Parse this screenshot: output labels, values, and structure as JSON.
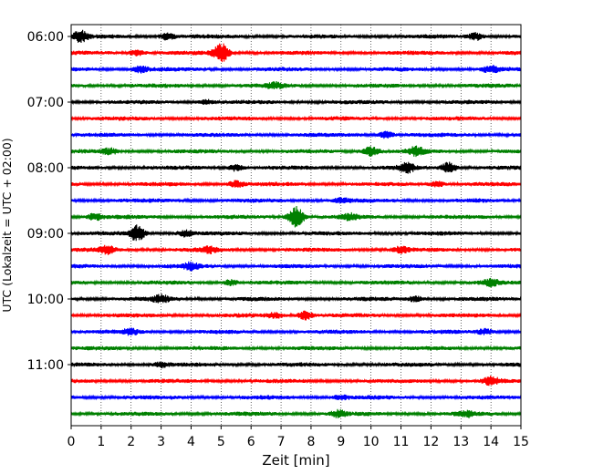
{
  "chart_data": {
    "type": "line",
    "title": "",
    "xlabel": "Zeit  [min]",
    "ylabel": "UTC (Lokalzeit = UTC + 02:00)",
    "xlim": [
      0,
      15
    ],
    "x_ticks": [
      "0",
      "1",
      "2",
      "3",
      "4",
      "5",
      "6",
      "7",
      "8",
      "9",
      "10",
      "11",
      "12",
      "13",
      "14",
      "15"
    ],
    "y_tick_labels": [
      "06:00",
      "07:00",
      "08:00",
      "09:00",
      "10:00",
      "11:00"
    ],
    "grid_x": true,
    "trace_interval_minutes": 15,
    "traces": [
      {
        "start": "06:00",
        "color": "#000000",
        "events": [
          {
            "t": 0.3,
            "amp": 1.0
          },
          {
            "t": 3.2,
            "amp": 0.6
          },
          {
            "t": 13.5,
            "amp": 0.7
          }
        ]
      },
      {
        "start": "06:15",
        "color": "#ff0000",
        "events": [
          {
            "t": 5.0,
            "amp": 1.8
          },
          {
            "t": 2.2,
            "amp": 0.5
          }
        ]
      },
      {
        "start": "06:30",
        "color": "#0000ff",
        "events": [
          {
            "t": 2.3,
            "amp": 0.6
          },
          {
            "t": 14.0,
            "amp": 0.6
          }
        ]
      },
      {
        "start": "06:45",
        "color": "#008000",
        "events": [
          {
            "t": 6.8,
            "amp": 0.5
          }
        ]
      },
      {
        "start": "07:00",
        "color": "#000000",
        "events": [
          {
            "t": 4.5,
            "amp": 0.4
          }
        ]
      },
      {
        "start": "07:15",
        "color": "#ff0000",
        "events": []
      },
      {
        "start": "07:30",
        "color": "#0000ff",
        "events": [
          {
            "t": 10.5,
            "amp": 0.6
          }
        ]
      },
      {
        "start": "07:45",
        "color": "#008000",
        "events": [
          {
            "t": 1.3,
            "amp": 0.5
          },
          {
            "t": 10.0,
            "amp": 0.9
          },
          {
            "t": 11.5,
            "amp": 0.8
          }
        ]
      },
      {
        "start": "08:00",
        "color": "#000000",
        "events": [
          {
            "t": 5.5,
            "amp": 0.6
          },
          {
            "t": 11.2,
            "amp": 0.8
          },
          {
            "t": 12.6,
            "amp": 1.0
          }
        ]
      },
      {
        "start": "08:15",
        "color": "#ff0000",
        "events": [
          {
            "t": 5.5,
            "amp": 0.6
          },
          {
            "t": 12.2,
            "amp": 0.5
          }
        ]
      },
      {
        "start": "08:30",
        "color": "#0000ff",
        "events": [
          {
            "t": 9.0,
            "amp": 0.4
          }
        ]
      },
      {
        "start": "08:45",
        "color": "#008000",
        "events": [
          {
            "t": 7.5,
            "amp": 2.0
          },
          {
            "t": 0.8,
            "amp": 0.6
          },
          {
            "t": 9.3,
            "amp": 0.5
          }
        ]
      },
      {
        "start": "09:00",
        "color": "#000000",
        "events": [
          {
            "t": 2.2,
            "amp": 1.5
          },
          {
            "t": 3.8,
            "amp": 0.6
          }
        ]
      },
      {
        "start": "09:15",
        "color": "#ff0000",
        "events": [
          {
            "t": 1.2,
            "amp": 0.7
          },
          {
            "t": 4.6,
            "amp": 0.5
          },
          {
            "t": 11.0,
            "amp": 0.5
          }
        ]
      },
      {
        "start": "09:30",
        "color": "#0000ff",
        "events": [
          {
            "t": 4.0,
            "amp": 0.6
          }
        ]
      },
      {
        "start": "09:45",
        "color": "#008000",
        "events": [
          {
            "t": 5.3,
            "amp": 0.5
          },
          {
            "t": 14.0,
            "amp": 0.6
          }
        ]
      },
      {
        "start": "10:00",
        "color": "#000000",
        "events": [
          {
            "t": 3.0,
            "amp": 0.7
          },
          {
            "t": 11.5,
            "amp": 0.5
          }
        ]
      },
      {
        "start": "10:15",
        "color": "#ff0000",
        "events": [
          {
            "t": 7.8,
            "amp": 0.8
          },
          {
            "t": 6.8,
            "amp": 0.5
          }
        ]
      },
      {
        "start": "10:30",
        "color": "#0000ff",
        "events": [
          {
            "t": 2.0,
            "amp": 0.5
          },
          {
            "t": 13.8,
            "amp": 0.5
          }
        ]
      },
      {
        "start": "10:45",
        "color": "#008000",
        "events": []
      },
      {
        "start": "11:00",
        "color": "#000000",
        "events": [
          {
            "t": 3.0,
            "amp": 0.4
          }
        ]
      },
      {
        "start": "11:15",
        "color": "#ff0000",
        "events": [
          {
            "t": 14.0,
            "amp": 0.7
          }
        ]
      },
      {
        "start": "11:30",
        "color": "#0000ff",
        "events": [
          {
            "t": 9.0,
            "amp": 0.4
          }
        ]
      },
      {
        "start": "11:45",
        "color": "#008000",
        "events": [
          {
            "t": 8.9,
            "amp": 0.6
          },
          {
            "t": 13.2,
            "amp": 0.5
          }
        ]
      }
    ]
  }
}
